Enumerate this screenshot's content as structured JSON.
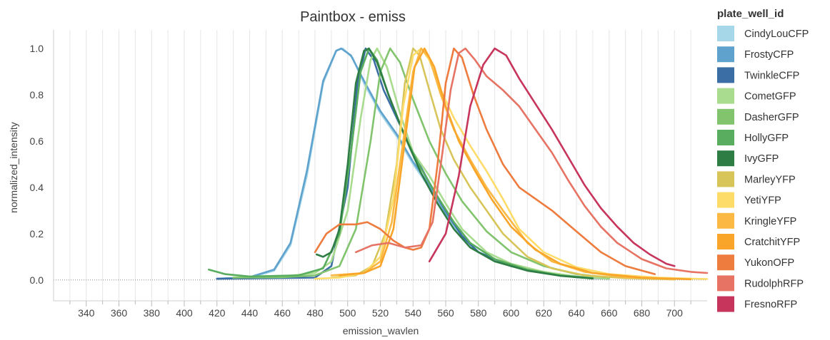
{
  "chart_data": {
    "type": "line",
    "title": "Paintbox - emiss",
    "xlabel": "emission_wavlen",
    "ylabel": "normalized_intensity",
    "xlim": [
      320,
      720
    ],
    "ylim": [
      -0.09,
      1.08
    ],
    "x_ticks": [
      340,
      360,
      380,
      400,
      420,
      440,
      460,
      480,
      500,
      520,
      540,
      560,
      580,
      600,
      620,
      640,
      660,
      680,
      700
    ],
    "y_ticks": [
      0.0,
      0.2,
      0.4,
      0.6,
      0.8,
      1.0
    ],
    "x_tick_labels": [
      "340",
      "360",
      "380",
      "400",
      "420",
      "440",
      "460",
      "480",
      "500",
      "520",
      "540",
      "560",
      "580",
      "600",
      "620",
      "640",
      "660",
      "680",
      "700"
    ],
    "y_tick_labels": [
      "0.0",
      "0.2",
      "0.4",
      "0.6",
      "0.8",
      "1.0"
    ],
    "grid": "vertical",
    "legend_title": "plate_well_id",
    "legend_position": "right",
    "series": [
      {
        "name": "CindyLouCFP",
        "color": "#a6d7e8",
        "points": [
          [
            420,
            0.005
          ],
          [
            440,
            0.01
          ],
          [
            455,
            0.04
          ],
          [
            465,
            0.15
          ],
          [
            475,
            0.45
          ],
          [
            485,
            0.85
          ],
          [
            493,
            0.99
          ],
          [
            497,
            1.0
          ],
          [
            503,
            0.96
          ],
          [
            510,
            0.85
          ],
          [
            520,
            0.72
          ],
          [
            530,
            0.62
          ],
          [
            540,
            0.5
          ],
          [
            550,
            0.4
          ],
          [
            560,
            0.28
          ],
          [
            570,
            0.18
          ],
          [
            580,
            0.12
          ],
          [
            600,
            0.06
          ],
          [
            620,
            0.03
          ],
          [
            640,
            0.015
          ],
          [
            660,
            0.005
          ]
        ]
      },
      {
        "name": "FrostyCFP",
        "color": "#5fa2cd",
        "points": [
          [
            420,
            0.005
          ],
          [
            440,
            0.012
          ],
          [
            455,
            0.045
          ],
          [
            465,
            0.16
          ],
          [
            475,
            0.47
          ],
          [
            485,
            0.86
          ],
          [
            493,
            0.99
          ],
          [
            496,
            1.0
          ],
          [
            502,
            0.97
          ],
          [
            510,
            0.86
          ],
          [
            520,
            0.73
          ],
          [
            530,
            0.63
          ],
          [
            540,
            0.51
          ],
          [
            550,
            0.41
          ],
          [
            560,
            0.29
          ],
          [
            570,
            0.19
          ],
          [
            580,
            0.12
          ],
          [
            600,
            0.06
          ],
          [
            620,
            0.03
          ],
          [
            640,
            0.015
          ],
          [
            660,
            0.005
          ]
        ]
      },
      {
        "name": "TwinkleCFP",
        "color": "#3a6ea5",
        "points": [
          [
            420,
            0.005
          ],
          [
            480,
            0.01
          ],
          [
            490,
            0.06
          ],
          [
            500,
            0.4
          ],
          [
            506,
            0.85
          ],
          [
            511,
            1.0
          ],
          [
            516,
            0.95
          ],
          [
            522,
            0.82
          ],
          [
            530,
            0.7
          ],
          [
            540,
            0.55
          ],
          [
            550,
            0.42
          ],
          [
            560,
            0.3
          ],
          [
            570,
            0.19
          ],
          [
            580,
            0.12
          ],
          [
            600,
            0.06
          ],
          [
            620,
            0.03
          ],
          [
            640,
            0.012
          ],
          [
            660,
            0.005
          ]
        ]
      },
      {
        "name": "CometGFP",
        "color": "#a9dc8f",
        "points": [
          [
            430,
            0.01
          ],
          [
            460,
            0.015
          ],
          [
            480,
            0.03
          ],
          [
            490,
            0.08
          ],
          [
            500,
            0.3
          ],
          [
            508,
            0.7
          ],
          [
            514,
            0.95
          ],
          [
            518,
            1.0
          ],
          [
            524,
            0.92
          ],
          [
            532,
            0.72
          ],
          [
            540,
            0.55
          ],
          [
            550,
            0.45
          ],
          [
            560,
            0.33
          ],
          [
            570,
            0.22
          ],
          [
            585,
            0.12
          ],
          [
            600,
            0.07
          ],
          [
            620,
            0.035
          ],
          [
            640,
            0.015
          ],
          [
            660,
            0.005
          ]
        ]
      },
      {
        "name": "DasherGFP",
        "color": "#82c46e",
        "points": [
          [
            430,
            0.01
          ],
          [
            460,
            0.012
          ],
          [
            480,
            0.02
          ],
          [
            495,
            0.06
          ],
          [
            505,
            0.22
          ],
          [
            514,
            0.6
          ],
          [
            520,
            0.9
          ],
          [
            526,
            1.0
          ],
          [
            532,
            0.94
          ],
          [
            540,
            0.78
          ],
          [
            550,
            0.6
          ],
          [
            560,
            0.46
          ],
          [
            570,
            0.34
          ],
          [
            585,
            0.21
          ],
          [
            600,
            0.12
          ],
          [
            620,
            0.06
          ],
          [
            640,
            0.025
          ],
          [
            660,
            0.01
          ]
        ]
      },
      {
        "name": "HollyGFP",
        "color": "#58ad5e",
        "points": [
          [
            415,
            0.045
          ],
          [
            425,
            0.025
          ],
          [
            440,
            0.015
          ],
          [
            470,
            0.02
          ],
          [
            485,
            0.05
          ],
          [
            495,
            0.2
          ],
          [
            502,
            0.55
          ],
          [
            508,
            0.9
          ],
          [
            513,
            1.0
          ],
          [
            518,
            0.95
          ],
          [
            525,
            0.8
          ],
          [
            535,
            0.62
          ],
          [
            545,
            0.48
          ],
          [
            555,
            0.36
          ],
          [
            565,
            0.25
          ],
          [
            575,
            0.16
          ],
          [
            590,
            0.09
          ],
          [
            610,
            0.045
          ],
          [
            630,
            0.02
          ],
          [
            650,
            0.008
          ]
        ]
      },
      {
        "name": "IvyGFP",
        "color": "#2e7d44",
        "points": [
          [
            481,
            0.11
          ],
          [
            485,
            0.1
          ],
          [
            490,
            0.12
          ],
          [
            495,
            0.22
          ],
          [
            500,
            0.5
          ],
          [
            505,
            0.85
          ],
          [
            510,
            0.99
          ],
          [
            513,
            1.0
          ],
          [
            518,
            0.94
          ],
          [
            525,
            0.8
          ],
          [
            535,
            0.62
          ],
          [
            545,
            0.46
          ],
          [
            555,
            0.33
          ],
          [
            565,
            0.22
          ],
          [
            575,
            0.14
          ],
          [
            590,
            0.08
          ],
          [
            610,
            0.04
          ],
          [
            630,
            0.018
          ],
          [
            650,
            0.006
          ]
        ]
      },
      {
        "name": "MarleyYFP",
        "color": "#d8c55a",
        "points": [
          [
            490,
            0.01
          ],
          [
            505,
            0.02
          ],
          [
            515,
            0.06
          ],
          [
            523,
            0.2
          ],
          [
            530,
            0.5
          ],
          [
            535,
            0.85
          ],
          [
            540,
            1.0
          ],
          [
            544,
            0.97
          ],
          [
            550,
            0.82
          ],
          [
            557,
            0.65
          ],
          [
            565,
            0.52
          ],
          [
            575,
            0.4
          ],
          [
            585,
            0.3
          ],
          [
            595,
            0.2
          ],
          [
            610,
            0.1
          ],
          [
            625,
            0.05
          ],
          [
            645,
            0.02
          ],
          [
            670,
            0.008
          ],
          [
            700,
            0.002
          ]
        ]
      },
      {
        "name": "YetiYFP",
        "color": "#fddc6a",
        "points": [
          [
            480,
            0.005
          ],
          [
            495,
            0.01
          ],
          [
            510,
            0.03
          ],
          [
            520,
            0.1
          ],
          [
            528,
            0.35
          ],
          [
            534,
            0.75
          ],
          [
            540,
            0.97
          ],
          [
            545,
            1.0
          ],
          [
            550,
            0.95
          ],
          [
            557,
            0.82
          ],
          [
            565,
            0.7
          ],
          [
            575,
            0.58
          ],
          [
            585,
            0.47
          ],
          [
            595,
            0.35
          ],
          [
            605,
            0.22
          ],
          [
            620,
            0.12
          ],
          [
            640,
            0.055
          ],
          [
            660,
            0.025
          ],
          [
            690,
            0.01
          ],
          [
            720,
            0.004
          ]
        ]
      },
      {
        "name": "KringleYFP",
        "color": "#fbb944",
        "points": [
          [
            490,
            0.02
          ],
          [
            510,
            0.03
          ],
          [
            520,
            0.08
          ],
          [
            527,
            0.25
          ],
          [
            534,
            0.6
          ],
          [
            540,
            0.9
          ],
          [
            545,
            1.0
          ],
          [
            550,
            0.96
          ],
          [
            557,
            0.8
          ],
          [
            565,
            0.65
          ],
          [
            575,
            0.52
          ],
          [
            585,
            0.4
          ],
          [
            595,
            0.3
          ],
          [
            610,
            0.16
          ],
          [
            625,
            0.08
          ],
          [
            645,
            0.035
          ],
          [
            670,
            0.012
          ],
          [
            700,
            0.004
          ]
        ]
      },
      {
        "name": "CratchitYFP",
        "color": "#f8a52a",
        "points": [
          [
            495,
            0.02
          ],
          [
            510,
            0.03
          ],
          [
            520,
            0.06
          ],
          [
            528,
            0.22
          ],
          [
            535,
            0.6
          ],
          [
            541,
            0.92
          ],
          [
            547,
            1.0
          ],
          [
            553,
            0.92
          ],
          [
            560,
            0.75
          ],
          [
            568,
            0.6
          ],
          [
            578,
            0.47
          ],
          [
            588,
            0.35
          ],
          [
            600,
            0.23
          ],
          [
            615,
            0.13
          ],
          [
            630,
            0.07
          ],
          [
            650,
            0.03
          ],
          [
            680,
            0.01
          ],
          [
            710,
            0.003
          ]
        ]
      },
      {
        "name": "YukonOFP",
        "color": "#ee7c3f",
        "points": [
          [
            480,
            0.12
          ],
          [
            487,
            0.2
          ],
          [
            495,
            0.24
          ],
          [
            505,
            0.24
          ],
          [
            512,
            0.25
          ],
          [
            520,
            0.22
          ],
          [
            528,
            0.17
          ],
          [
            535,
            0.14
          ],
          [
            540,
            0.13
          ],
          [
            545,
            0.14
          ],
          [
            550,
            0.22
          ],
          [
            555,
            0.5
          ],
          [
            560,
            0.85
          ],
          [
            565,
            1.0
          ],
          [
            570,
            0.96
          ],
          [
            577,
            0.8
          ],
          [
            585,
            0.65
          ],
          [
            595,
            0.5
          ],
          [
            605,
            0.4
          ],
          [
            615,
            0.35
          ],
          [
            625,
            0.3
          ],
          [
            640,
            0.21
          ],
          [
            655,
            0.12
          ],
          [
            670,
            0.06
          ],
          [
            688,
            0.025
          ]
        ]
      },
      {
        "name": "RudolphRFP",
        "color": "#e67363",
        "points": [
          [
            505,
            0.12
          ],
          [
            515,
            0.15
          ],
          [
            525,
            0.16
          ],
          [
            535,
            0.14
          ],
          [
            545,
            0.15
          ],
          [
            552,
            0.25
          ],
          [
            558,
            0.55
          ],
          [
            563,
            0.82
          ],
          [
            568,
            0.98
          ],
          [
            572,
            1.0
          ],
          [
            578,
            0.95
          ],
          [
            585,
            0.88
          ],
          [
            595,
            0.82
          ],
          [
            605,
            0.75
          ],
          [
            615,
            0.65
          ],
          [
            625,
            0.55
          ],
          [
            635,
            0.43
          ],
          [
            645,
            0.32
          ],
          [
            655,
            0.23
          ],
          [
            665,
            0.16
          ],
          [
            680,
            0.09
          ],
          [
            695,
            0.05
          ],
          [
            710,
            0.035
          ],
          [
            720,
            0.03
          ]
        ]
      },
      {
        "name": "FresnoRFP",
        "color": "#c7355c",
        "points": [
          [
            550,
            0.08
          ],
          [
            560,
            0.2
          ],
          [
            568,
            0.45
          ],
          [
            575,
            0.75
          ],
          [
            583,
            0.93
          ],
          [
            590,
            1.0
          ],
          [
            597,
            0.97
          ],
          [
            605,
            0.87
          ],
          [
            615,
            0.76
          ],
          [
            625,
            0.65
          ],
          [
            635,
            0.53
          ],
          [
            645,
            0.41
          ],
          [
            655,
            0.31
          ],
          [
            665,
            0.23
          ],
          [
            675,
            0.16
          ],
          [
            685,
            0.11
          ],
          [
            695,
            0.07
          ],
          [
            700,
            0.06
          ]
        ]
      }
    ]
  }
}
